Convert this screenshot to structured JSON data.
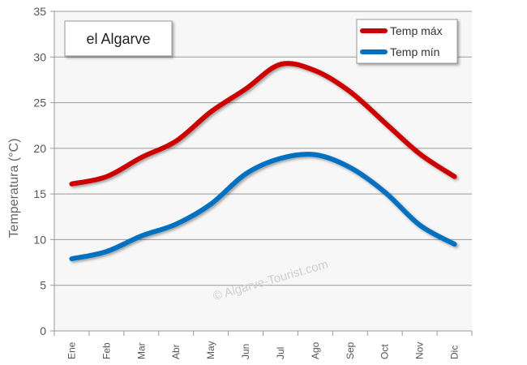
{
  "chart_data": {
    "type": "line",
    "title": "el Algarve",
    "ylabel": "Temperatura (°C)",
    "xlabel": "",
    "ylim": [
      0,
      35
    ],
    "yticks": [
      0,
      5,
      10,
      15,
      20,
      25,
      30,
      35
    ],
    "categories": [
      "Ene",
      "Feb",
      "Mar",
      "Abr",
      "May",
      "Jun",
      "Jul",
      "Ago",
      "Sep",
      "Oct",
      "Nov",
      "Dic"
    ],
    "grid": true,
    "legend_position": "top-right",
    "series": [
      {
        "name": "Temp máx",
        "color": "#cc0000",
        "values": [
          16.1,
          16.9,
          19.0,
          20.8,
          24.0,
          26.5,
          29.2,
          28.5,
          26.2,
          22.8,
          19.4,
          16.9
        ]
      },
      {
        "name": "Temp mín",
        "color": "#0070c0",
        "values": [
          7.9,
          8.7,
          10.4,
          11.7,
          13.9,
          17.2,
          18.9,
          19.3,
          17.9,
          15.2,
          11.6,
          9.5
        ]
      }
    ],
    "watermark": "© Algarve-Tourist.com"
  }
}
